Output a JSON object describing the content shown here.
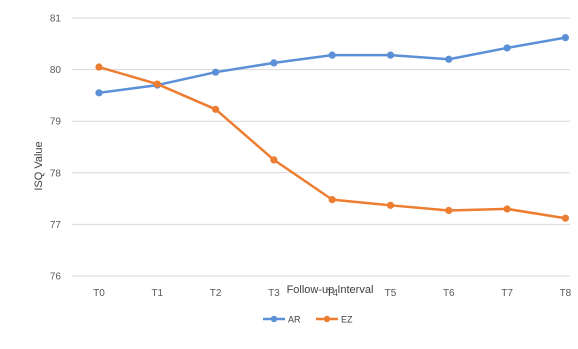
{
  "chart_data": {
    "type": "line",
    "title": "",
    "xlabel": "Follow-up Interval",
    "ylabel": "ISQ Value",
    "categories": [
      "T0",
      "T1",
      "T2",
      "T3",
      "T4",
      "T5",
      "T6",
      "T7",
      "T8"
    ],
    "ylim": [
      76,
      81
    ],
    "yticks": [
      "76",
      "77",
      "78",
      "79",
      "80",
      "81"
    ],
    "grid": "horizontal",
    "legend_position": "bottom",
    "series": [
      {
        "name": "AR",
        "color": "#5b8fd6",
        "values": [
          79.55,
          79.7,
          79.95,
          80.13,
          80.28,
          80.28,
          80.2,
          80.42,
          80.62
        ]
      },
      {
        "name": "EZ",
        "color": "#ed7d31",
        "values": [
          80.05,
          79.72,
          79.23,
          78.25,
          77.48,
          77.37,
          77.27,
          77.3,
          77.12
        ]
      }
    ]
  }
}
